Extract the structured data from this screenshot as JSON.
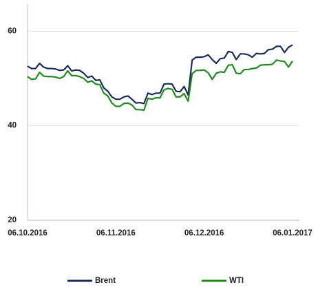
{
  "chart_data": {
    "type": "line",
    "categories": [
      "06.10.2016",
      null,
      null,
      null,
      null,
      null,
      null,
      null,
      null,
      null,
      null,
      null,
      null,
      null,
      null,
      null,
      null,
      null,
      null,
      null,
      null,
      null,
      "06.11.2016",
      null,
      null,
      null,
      null,
      null,
      null,
      null,
      null,
      null,
      null,
      null,
      null,
      null,
      null,
      null,
      null,
      null,
      null,
      null,
      null,
      null,
      "06.12.2016",
      null,
      null,
      null,
      null,
      null,
      null,
      null,
      null,
      null,
      null,
      null,
      null,
      null,
      null,
      null,
      null,
      null,
      null,
      null,
      null,
      null,
      "06.01.2017"
    ],
    "series": [
      {
        "name": "Brent",
        "color": "#1b2a5c",
        "values": [
          52.6,
          52.1,
          52.1,
          53.2,
          52.4,
          52.1,
          52.1,
          52.0,
          51.7,
          51.8,
          52.7,
          51.6,
          51.8,
          51.7,
          51.1,
          50.2,
          50.5,
          49.6,
          49.7,
          48.0,
          47.3,
          46.1,
          45.6,
          45.6,
          46.1,
          46.3,
          45.6,
          44.8,
          44.9,
          44.7,
          46.9,
          46.6,
          46.9,
          46.9,
          48.8,
          48.9,
          48.8,
          47.3,
          47.2,
          48.3,
          46.5,
          53.9,
          54.5,
          54.5,
          54.6,
          55.0,
          54.0,
          53.2,
          54.2,
          54.3,
          55.7,
          55.5,
          54.0,
          55.2,
          55.2,
          55.0,
          54.5,
          55.3,
          55.2,
          55.3,
          56.1,
          56.2,
          56.8,
          56.8,
          55.5,
          56.6,
          57.1
        ]
      },
      {
        "name": "WTI",
        "color": "#1e8a1e",
        "values": [
          50.4,
          49.8,
          49.9,
          51.3,
          50.5,
          50.4,
          50.4,
          50.3,
          50.0,
          50.4,
          51.6,
          50.6,
          50.6,
          50.4,
          50.0,
          49.2,
          49.5,
          48.8,
          48.7,
          46.9,
          46.3,
          44.8,
          44.1,
          44.1,
          44.7,
          44.8,
          44.4,
          43.4,
          43.4,
          43.3,
          45.8,
          45.6,
          45.9,
          45.9,
          47.6,
          47.9,
          47.7,
          46.1,
          46.1,
          46.8,
          45.2,
          51.0,
          51.7,
          51.7,
          51.8,
          51.2,
          49.8,
          51.1,
          51.4,
          51.3,
          52.8,
          52.9,
          51.1,
          51.0,
          51.9,
          51.9,
          52.1,
          52.2,
          52.8,
          52.9,
          52.9,
          53.0,
          53.9,
          53.7,
          53.6,
          52.4,
          53.7
        ]
      }
    ],
    "ylim": [
      20,
      65
    ],
    "yticks": [
      20,
      40,
      60
    ],
    "grid": true
  }
}
